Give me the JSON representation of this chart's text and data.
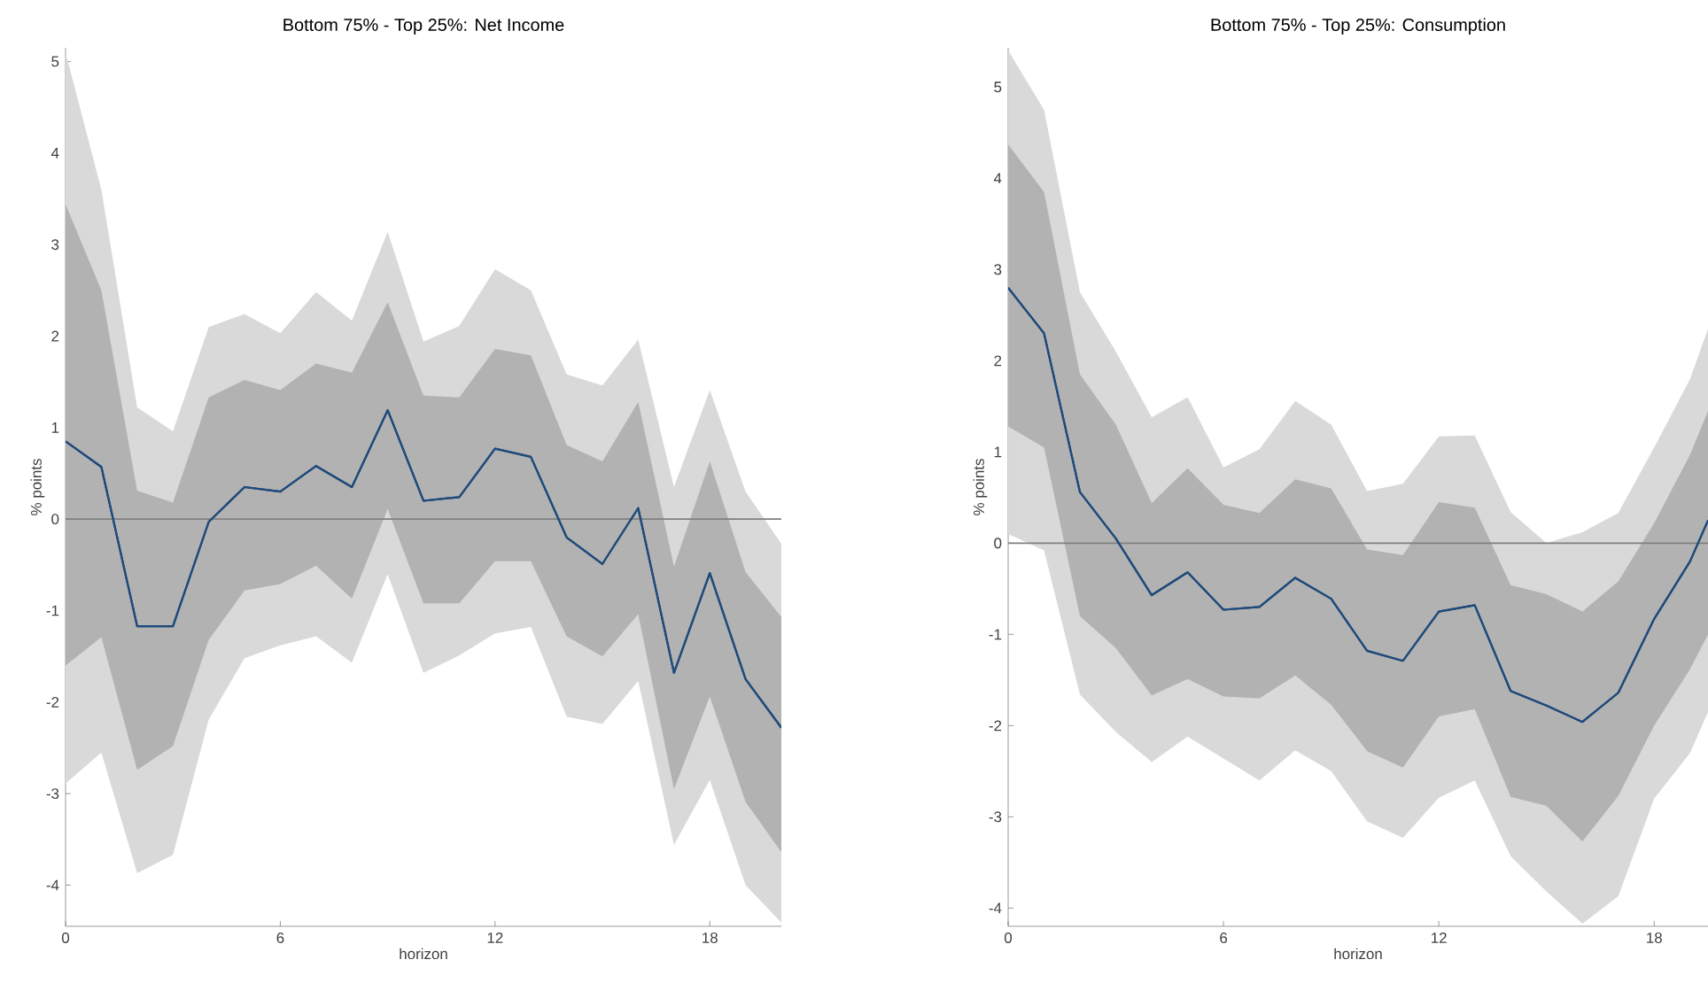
{
  "chart_data": [
    {
      "type": "line",
      "title": "Bottom 75% - Top 25%: Net Income",
      "xlabel": "horizon",
      "ylabel": "% points",
      "x": [
        0,
        1,
        2,
        3,
        4,
        5,
        6,
        7,
        8,
        9,
        10,
        11,
        12,
        13,
        14,
        15,
        16,
        17,
        18,
        19,
        20
      ],
      "series": [
        {
          "color": "#1f4a7a",
          "values": [
            0.85,
            0.57,
            -1.17,
            -1.17,
            -0.03,
            0.35,
            0.3,
            0.58,
            0.35,
            1.19,
            0.2,
            0.24,
            0.77,
            0.68,
            -0.2,
            -0.49,
            0.12,
            -1.68,
            -0.59,
            -1.75,
            -2.28
          ],
          "upper": [
            5.1,
            3.6,
            1.22,
            0.96,
            2.1,
            2.24,
            2.03,
            2.48,
            2.17,
            3.14,
            1.94,
            2.11,
            2.73,
            2.5,
            1.58,
            1.46,
            1.96,
            0.35,
            1.41,
            0.3,
            -0.27
          ],
          "lower": [
            -2.89,
            -2.55,
            -3.87,
            -3.67,
            -2.19,
            -1.52,
            -1.38,
            -1.28,
            -1.57,
            -0.6,
            -1.68,
            -1.49,
            -1.25,
            -1.18,
            -2.16,
            -2.24,
            -1.77,
            -3.56,
            -2.85,
            -4.0,
            -4.41
          ]
        },
        {
          "color": "#1f4a7a",
          "values": [
            0.85,
            0.57,
            -1.17,
            -1.17,
            -0.03,
            0.35,
            0.3,
            0.58,
            0.35,
            1.19,
            0.2,
            0.24,
            0.77,
            0.68,
            -0.2,
            -0.49,
            0.12,
            -1.68,
            -0.59,
            -1.75,
            -2.28
          ],
          "upper": [
            3.44,
            2.5,
            0.31,
            0.18,
            1.33,
            1.52,
            1.41,
            1.7,
            1.6,
            2.37,
            1.35,
            1.33,
            1.86,
            1.79,
            0.81,
            0.63,
            1.28,
            -0.52,
            0.63,
            -0.58,
            -1.07
          ],
          "lower": [
            -1.6,
            -1.29,
            -2.74,
            -2.48,
            -1.32,
            -0.78,
            -0.71,
            -0.51,
            -0.87,
            0.11,
            -0.92,
            -0.92,
            -0.46,
            -0.46,
            -1.28,
            -1.5,
            -1.04,
            -2.95,
            -1.94,
            -3.09,
            -3.64
          ]
        }
      ],
      "xlim": [
        0,
        20
      ],
      "ylim": [
        -4.45,
        5.15
      ],
      "xticks": [
        0,
        6,
        12,
        18
      ],
      "yticks": [
        -4,
        -3,
        -2,
        -1,
        0,
        1,
        2,
        3,
        4,
        5
      ],
      "ref_lines": [
        {
          "axis": "y",
          "value": 0,
          "color": "#808080"
        }
      ]
    },
    {
      "type": "line",
      "title": "Bottom 75% - Top 25%: Consumption",
      "xlabel": "horizon",
      "ylabel": "% points",
      "x": [
        0,
        1,
        2,
        3,
        4,
        5,
        6,
        7,
        8,
        9,
        10,
        11,
        12,
        13,
        14,
        15,
        16,
        17,
        18,
        19,
        19.5
      ],
      "series": [
        {
          "color": "#1f4a7a",
          "values": [
            2.8,
            2.3,
            0.56,
            0.05,
            -0.57,
            -0.32,
            -0.73,
            -0.7,
            -0.38,
            -0.61,
            -1.18,
            -1.29,
            -0.75,
            -0.68,
            -1.62,
            -1.78,
            -1.96,
            -1.64,
            -0.83,
            -0.2,
            0.25
          ],
          "upper": [
            5.4,
            4.75,
            2.75,
            2.1,
            1.38,
            1.6,
            0.83,
            1.03,
            1.56,
            1.3,
            0.57,
            0.65,
            1.17,
            1.18,
            0.34,
            0.0,
            0.12,
            0.33,
            1.05,
            1.8,
            2.35
          ],
          "lower": [
            0.1,
            -0.08,
            -1.66,
            -2.07,
            -2.4,
            -2.12,
            -2.36,
            -2.6,
            -2.27,
            -2.5,
            -3.05,
            -3.23,
            -2.79,
            -2.6,
            -3.43,
            -3.82,
            -4.17,
            -3.87,
            -2.8,
            -2.3,
            -1.85
          ]
        },
        {
          "color": "#1f4a7a",
          "values": [
            2.8,
            2.3,
            0.56,
            0.05,
            -0.57,
            -0.32,
            -0.73,
            -0.7,
            -0.38,
            -0.61,
            -1.18,
            -1.29,
            -0.75,
            -0.68,
            -1.62,
            -1.78,
            -1.96,
            -1.64,
            -0.83,
            -0.2,
            0.25
          ],
          "upper": [
            4.37,
            3.85,
            1.85,
            1.3,
            0.44,
            0.82,
            0.42,
            0.33,
            0.7,
            0.6,
            -0.07,
            -0.13,
            0.45,
            0.39,
            -0.46,
            -0.56,
            -0.75,
            -0.42,
            0.22,
            0.97,
            1.45
          ],
          "lower": [
            1.28,
            1.05,
            -0.8,
            -1.15,
            -1.67,
            -1.49,
            -1.68,
            -1.7,
            -1.45,
            -1.77,
            -2.28,
            -2.46,
            -1.9,
            -1.82,
            -2.78,
            -2.88,
            -3.27,
            -2.77,
            -2.0,
            -1.38,
            -1.0
          ]
        }
      ],
      "xlim": [
        0,
        19.5
      ],
      "ylim": [
        -4.2,
        5.43
      ],
      "xticks": [
        0,
        6,
        12,
        18
      ],
      "yticks": [
        -4,
        -3,
        -2,
        -1,
        0,
        1,
        2,
        3,
        4,
        5
      ],
      "ref_lines": [
        {
          "axis": "y",
          "value": 0,
          "color": "#808080"
        }
      ]
    }
  ]
}
